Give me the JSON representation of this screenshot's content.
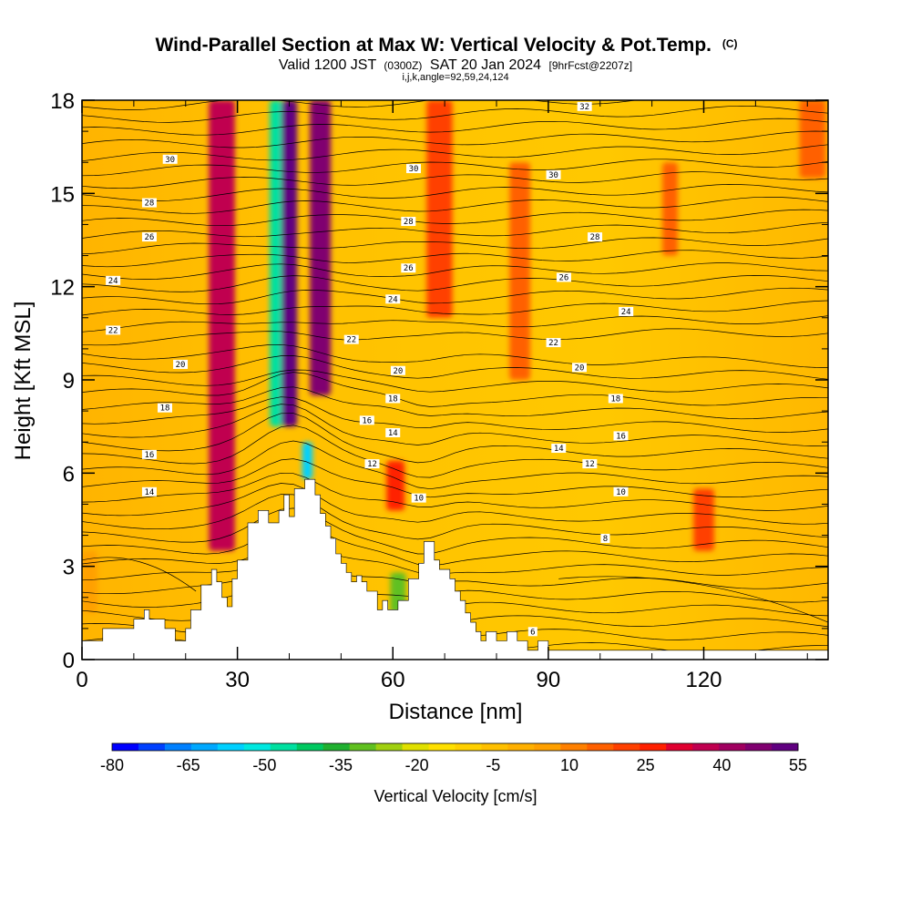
{
  "chart_data": {
    "type": "heatmap",
    "title": "Wind-Parallel Section at Max W: Vertical Velocity & Pot.Temp.",
    "title_suffix": "(C)",
    "subtitle_parts": [
      "Valid 1200 JST",
      "(0300Z)",
      "SAT 20 Jan 2024",
      "[9hrFcst@2207z]"
    ],
    "subtitle2": "i,j,k,angle=92,59,24,124",
    "xlabel": "Distance [nm]",
    "ylabel": "Height [Kft MSL]",
    "xlim": [
      0,
      144
    ],
    "ylim": [
      0,
      18
    ],
    "x_ticks": [
      "0",
      "30",
      "60",
      "90",
      "120"
    ],
    "x_tick_values": [
      0,
      30,
      60,
      90,
      120
    ],
    "y_ticks": [
      "0",
      "3",
      "6",
      "9",
      "12",
      "15",
      "18"
    ],
    "y_tick_values": [
      0,
      3,
      6,
      9,
      12,
      15,
      18
    ],
    "colorbar": {
      "title": "Vertical Velocity [cm/s]",
      "tick_labels": [
        "-80",
        "-65",
        "-50",
        "-35",
        "-20",
        "-5",
        "10",
        "25",
        "40",
        "55"
      ],
      "min": -80,
      "max": 55,
      "colors": [
        "#0000ff",
        "#0040ff",
        "#0080ff",
        "#00a8ff",
        "#00d0ff",
        "#00e8e0",
        "#00e0a0",
        "#00c860",
        "#20b030",
        "#60c020",
        "#a0d010",
        "#e0e000",
        "#ffe000",
        "#ffd000",
        "#ffc000",
        "#ffb000",
        "#ffa000",
        "#ff8000",
        "#ff6000",
        "#ff4000",
        "#ff2000",
        "#e00030",
        "#c00050",
        "#a00060",
        "#800070",
        "#600080"
      ]
    },
    "series": [
      {
        "name": "Vertical Velocity",
        "note_kind": "filled",
        "bands": [
          {
            "x": 27,
            "w": 5,
            "y0": 3.5,
            "y1": 18,
            "value": 35
          },
          {
            "x": 37.5,
            "w": 2.5,
            "y0": 7.5,
            "y1": 18,
            "value": -45
          },
          {
            "x": 40,
            "w": 3,
            "y0": 7.5,
            "y1": 18,
            "value": 50
          },
          {
            "x": 46,
            "w": 4,
            "y0": 8.5,
            "y1": 18,
            "value": 45
          },
          {
            "x": 43.5,
            "w": 2,
            "y0": 5.8,
            "y1": 7.0,
            "value": -55
          },
          {
            "x": 61,
            "w": 3,
            "y0": 1.5,
            "y1": 2.8,
            "value": -30
          },
          {
            "x": 60.5,
            "w": 3.5,
            "y0": 4.8,
            "y1": 6.4,
            "value": 25
          },
          {
            "x": 69,
            "w": 5,
            "y0": 11,
            "y1": 18,
            "value": 22
          },
          {
            "x": 120,
            "w": 4,
            "y0": 3.5,
            "y1": 5.5,
            "value": 22
          },
          {
            "x": 84.5,
            "w": 4,
            "y0": 9,
            "y1": 16,
            "value": 15
          },
          {
            "x": 113.5,
            "w": 3,
            "y0": 13,
            "y1": 16,
            "value": 14
          },
          {
            "x": 141,
            "w": 5,
            "y0": 15.5,
            "y1": 18,
            "value": 14
          },
          {
            "x": 1.5,
            "w": 3,
            "y0": 1.5,
            "y1": 3.5,
            "value": 8
          }
        ]
      },
      {
        "name": "Potential Temperature",
        "note_kind": "contour",
        "labels": [
          {
            "x": 97,
            "y": 17.8,
            "text": "32"
          },
          {
            "x": 17,
            "y": 16.1,
            "text": "30"
          },
          {
            "x": 64,
            "y": 15.8,
            "text": "30"
          },
          {
            "x": 91,
            "y": 15.6,
            "text": "30"
          },
          {
            "x": 13,
            "y": 14.7,
            "text": "28"
          },
          {
            "x": 63,
            "y": 14.1,
            "text": "28"
          },
          {
            "x": 99,
            "y": 13.6,
            "text": "28"
          },
          {
            "x": 13,
            "y": 13.6,
            "text": "26"
          },
          {
            "x": 63,
            "y": 12.6,
            "text": "26"
          },
          {
            "x": 93,
            "y": 12.3,
            "text": "26"
          },
          {
            "x": 6,
            "y": 12.2,
            "text": "24"
          },
          {
            "x": 60,
            "y": 11.6,
            "text": "24"
          },
          {
            "x": 105,
            "y": 11.2,
            "text": "24"
          },
          {
            "x": 6,
            "y": 10.6,
            "text": "22"
          },
          {
            "x": 52,
            "y": 10.3,
            "text": "22"
          },
          {
            "x": 91,
            "y": 10.2,
            "text": "22"
          },
          {
            "x": 19,
            "y": 9.5,
            "text": "20"
          },
          {
            "x": 61,
            "y": 9.3,
            "text": "20"
          },
          {
            "x": 96,
            "y": 9.4,
            "text": "20"
          },
          {
            "x": 16,
            "y": 8.1,
            "text": "18"
          },
          {
            "x": 60,
            "y": 8.4,
            "text": "18"
          },
          {
            "x": 103,
            "y": 8.4,
            "text": "18"
          },
          {
            "x": 55,
            "y": 7.7,
            "text": "16"
          },
          {
            "x": 13,
            "y": 6.6,
            "text": "16"
          },
          {
            "x": 104,
            "y": 7.2,
            "text": "16"
          },
          {
            "x": 60,
            "y": 7.3,
            "text": "14"
          },
          {
            "x": 92,
            "y": 6.8,
            "text": "14"
          },
          {
            "x": 13,
            "y": 5.4,
            "text": "14"
          },
          {
            "x": 56,
            "y": 6.3,
            "text": "12"
          },
          {
            "x": 98,
            "y": 6.3,
            "text": "12"
          },
          {
            "x": 65,
            "y": 5.2,
            "text": "10"
          },
          {
            "x": 104,
            "y": 5.4,
            "text": "10"
          },
          {
            "x": 101,
            "y": 3.9,
            "text": "8"
          },
          {
            "x": 87,
            "y": 0.9,
            "text": "6"
          }
        ]
      }
    ],
    "terrain": {
      "x": [
        0,
        4,
        4,
        10,
        10,
        12,
        12,
        13,
        13,
        16,
        16,
        18,
        18,
        20,
        20,
        21,
        21,
        23,
        23,
        25,
        25,
        26,
        26,
        27,
        27,
        28,
        28,
        29,
        29,
        30,
        30,
        32,
        32,
        34,
        34,
        36,
        36,
        38,
        38,
        39,
        39,
        40,
        40,
        41,
        41,
        43,
        43,
        45,
        45,
        46,
        46,
        47,
        47,
        48,
        48,
        49,
        49,
        50,
        50,
        51,
        51,
        52,
        52,
        53,
        53,
        54,
        54,
        55,
        55,
        57,
        57,
        58,
        58,
        59,
        59,
        61,
        61,
        63,
        63,
        65,
        65,
        66,
        66,
        68,
        68,
        69,
        69,
        71,
        71,
        72,
        72,
        73,
        73,
        74,
        74,
        75,
        75,
        76,
        76,
        77,
        77,
        78,
        78,
        80,
        80,
        82,
        82,
        84,
        84,
        86,
        86,
        88,
        88,
        90,
        90,
        144
      ],
      "y": [
        0.6,
        0.6,
        1.0,
        1.0,
        1.3,
        1.3,
        1.6,
        1.6,
        1.3,
        1.3,
        1.0,
        1.0,
        0.6,
        0.6,
        1.0,
        1.0,
        1.6,
        1.6,
        2.4,
        2.4,
        2.9,
        2.9,
        2.5,
        2.5,
        2.0,
        2.0,
        1.7,
        1.7,
        2.6,
        2.6,
        3.2,
        3.2,
        4.4,
        4.4,
        4.8,
        4.8,
        4.4,
        4.4,
        4.8,
        4.8,
        5.3,
        5.3,
        4.6,
        4.6,
        5.5,
        5.5,
        5.8,
        5.8,
        5.3,
        5.3,
        4.7,
        4.7,
        4.3,
        4.3,
        3.9,
        3.9,
        3.4,
        3.4,
        3.1,
        3.1,
        2.8,
        2.8,
        2.5,
        2.5,
        2.7,
        2.7,
        2.5,
        2.5,
        2.2,
        2.2,
        1.6,
        1.6,
        1.9,
        1.9,
        1.6,
        1.6,
        1.9,
        1.9,
        2.6,
        2.6,
        3.1,
        3.1,
        3.8,
        3.8,
        3.2,
        3.2,
        2.9,
        2.9,
        2.6,
        2.6,
        2.2,
        2.2,
        1.9,
        1.9,
        1.5,
        1.5,
        1.2,
        1.2,
        0.9,
        0.9,
        0.6,
        0.6,
        0.9,
        0.9,
        0.6,
        0.6,
        0.9,
        0.9,
        0.6,
        0.6,
        0.3,
        0.3,
        0.6,
        0.6,
        0.3,
        0.3
      ]
    }
  }
}
